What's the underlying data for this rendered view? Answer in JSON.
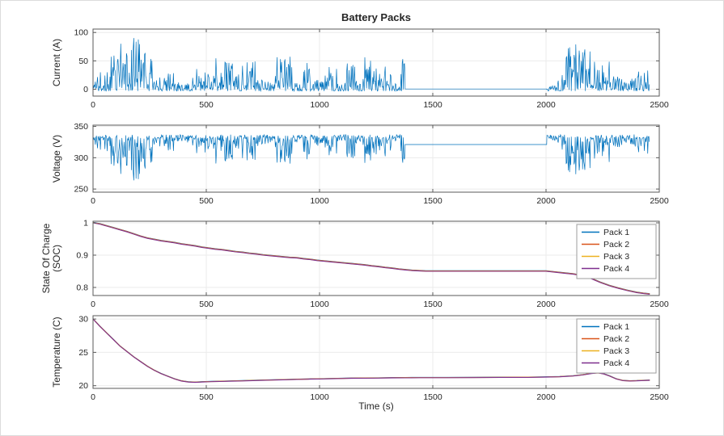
{
  "figure": {
    "title": "Battery Packs",
    "xlabel": "Time (s)",
    "background": "#ffffff",
    "border_color": "#dcdcdc",
    "axes_color": "#5a5a5a",
    "grid_color": "#ebebeb",
    "text_color": "#262626"
  },
  "packs": [
    {
      "label": "Pack 1",
      "color": "#0072BD"
    },
    {
      "label": "Pack 2",
      "color": "#D95319"
    },
    {
      "label": "Pack 3",
      "color": "#EDB120"
    },
    {
      "label": "Pack 4",
      "color": "#7E2F8E"
    }
  ],
  "chart_data": [
    {
      "name": "current",
      "type": "line",
      "title": "Battery Packs",
      "ylabel": "Current (A)",
      "xlim": [
        0,
        2500
      ],
      "ylim": [
        -12,
        106
      ],
      "xticks": [
        0,
        500,
        1000,
        1500,
        2000,
        2500
      ],
      "xtick_labels": [
        "0",
        "500",
        "1000",
        "1500",
        "2000",
        "2500"
      ],
      "yticks": [
        0,
        50,
        100
      ],
      "ytick_labels": [
        "0",
        "50",
        "100"
      ],
      "line_color": "#0072BD",
      "legend": false,
      "signal": {
        "kind": "drive_cycle",
        "seed": 11,
        "sample_step": 2.5,
        "segments": [
          {
            "t": [
              0,
              1378
            ],
            "mode": "drive",
            "base": 5,
            "amp": 62
          },
          {
            "t": [
              1378,
              2004
            ],
            "mode": "flat",
            "value": 0.5
          },
          {
            "t": [
              2004,
              2458
            ],
            "mode": "drive",
            "base": 6,
            "amp": 62
          }
        ],
        "peaks": [
          {
            "t": 175,
            "width": 55,
            "gain": 1.65
          },
          {
            "t": 640,
            "width": 45,
            "gain": 1.18
          },
          {
            "t": 2135,
            "width": 55,
            "gain": 1.62
          },
          {
            "t": 2300,
            "width": 70,
            "gain": 1.25
          }
        ]
      }
    },
    {
      "name": "voltage",
      "type": "line",
      "ylabel": "Voltage (V)",
      "xlim": [
        0,
        2500
      ],
      "ylim": [
        245,
        352
      ],
      "xticks": [
        0,
        500,
        1000,
        1500,
        2000,
        2500
      ],
      "xtick_labels": [
        "0",
        "500",
        "1000",
        "1500",
        "2000",
        "2500"
      ],
      "yticks": [
        250,
        300,
        350
      ],
      "ytick_labels": [
        "250",
        "300",
        "350"
      ],
      "line_color": "#0072BD",
      "legend": false,
      "signal": {
        "kind": "derived_voltage",
        "seed": 23,
        "base": 335.5,
        "gain": 0.78,
        "noise": 5,
        "flat_value": 321
      }
    },
    {
      "name": "soc",
      "type": "line",
      "ylabel": "State Of Charge (SOC)",
      "ylabel_lines": [
        "State Of Charge",
        "(SOC)"
      ],
      "xlim": [
        0,
        2500
      ],
      "ylim": [
        0.775,
        1.005
      ],
      "xticks": [
        0,
        500,
        1000,
        1500,
        2000,
        2500
      ],
      "xtick_labels": [
        "0",
        "500",
        "1000",
        "1500",
        "2000",
        "2500"
      ],
      "yticks": [
        0.8,
        0.9,
        1
      ],
      "ytick_labels": [
        "0.8",
        "0.9",
        "1"
      ],
      "legend": true,
      "series_labels": [
        "Pack 1",
        "Pack 2",
        "Pack 3",
        "Pack 4"
      ],
      "series_offsets": [
        0.0018,
        0.0012,
        0.0006,
        0
      ],
      "points": [
        [
          0,
          1.0
        ],
        [
          30,
          0.996
        ],
        [
          60,
          0.99
        ],
        [
          90,
          0.984
        ],
        [
          120,
          0.978
        ],
        [
          150,
          0.972
        ],
        [
          180,
          0.965
        ],
        [
          210,
          0.958
        ],
        [
          240,
          0.952
        ],
        [
          270,
          0.948
        ],
        [
          300,
          0.944
        ],
        [
          330,
          0.941
        ],
        [
          360,
          0.938
        ],
        [
          390,
          0.934
        ],
        [
          420,
          0.931
        ],
        [
          450,
          0.928
        ],
        [
          480,
          0.924
        ],
        [
          510,
          0.921
        ],
        [
          540,
          0.918
        ],
        [
          570,
          0.916
        ],
        [
          600,
          0.913
        ],
        [
          630,
          0.91
        ],
        [
          660,
          0.908
        ],
        [
          690,
          0.905
        ],
        [
          720,
          0.903
        ],
        [
          750,
          0.9
        ],
        [
          780,
          0.898
        ],
        [
          810,
          0.896
        ],
        [
          840,
          0.894
        ],
        [
          870,
          0.892
        ],
        [
          900,
          0.891
        ],
        [
          930,
          0.888
        ],
        [
          960,
          0.886
        ],
        [
          990,
          0.883
        ],
        [
          1020,
          0.881
        ],
        [
          1050,
          0.879
        ],
        [
          1080,
          0.877
        ],
        [
          1110,
          0.875
        ],
        [
          1140,
          0.873
        ],
        [
          1170,
          0.871
        ],
        [
          1200,
          0.869
        ],
        [
          1230,
          0.866
        ],
        [
          1260,
          0.864
        ],
        [
          1290,
          0.861
        ],
        [
          1320,
          0.859
        ],
        [
          1350,
          0.856
        ],
        [
          1380,
          0.854
        ],
        [
          1410,
          0.852
        ],
        [
          1440,
          0.851
        ],
        [
          1470,
          0.85
        ],
        [
          1600,
          0.85
        ],
        [
          1800,
          0.85
        ],
        [
          2000,
          0.85
        ],
        [
          2040,
          0.847
        ],
        [
          2080,
          0.844
        ],
        [
          2120,
          0.841
        ],
        [
          2160,
          0.836
        ],
        [
          2200,
          0.827
        ],
        [
          2240,
          0.815
        ],
        [
          2280,
          0.805
        ],
        [
          2320,
          0.797
        ],
        [
          2360,
          0.79
        ],
        [
          2400,
          0.784
        ],
        [
          2430,
          0.781
        ],
        [
          2458,
          0.779
        ]
      ]
    },
    {
      "name": "temperature",
      "type": "line",
      "ylabel": "Temperature (C)",
      "xlabel": "Time (s)",
      "xlim": [
        0,
        2500
      ],
      "ylim": [
        19.6,
        30.5
      ],
      "xticks": [
        0,
        500,
        1000,
        1500,
        2000,
        2500
      ],
      "xtick_labels": [
        "0",
        "500",
        "1000",
        "1500",
        "2000",
        "2500"
      ],
      "yticks": [
        20,
        25,
        30
      ],
      "ytick_labels": [
        "20",
        "25",
        "30"
      ],
      "legend": true,
      "series_labels": [
        "Pack 1",
        "Pack 2",
        "Pack 3",
        "Pack 4"
      ],
      "series_offsets": [
        0.05,
        0.033,
        0.017,
        0
      ],
      "points": [
        [
          0,
          30.0
        ],
        [
          30,
          28.9
        ],
        [
          60,
          27.9
        ],
        [
          90,
          26.9
        ],
        [
          120,
          25.9
        ],
        [
          150,
          25.1
        ],
        [
          180,
          24.3
        ],
        [
          210,
          23.6
        ],
        [
          240,
          22.9
        ],
        [
          270,
          22.3
        ],
        [
          300,
          21.8
        ],
        [
          330,
          21.4
        ],
        [
          360,
          21.0
        ],
        [
          390,
          20.7
        ],
        [
          420,
          20.55
        ],
        [
          450,
          20.5
        ],
        [
          480,
          20.55
        ],
        [
          520,
          20.6
        ],
        [
          560,
          20.63
        ],
        [
          600,
          20.67
        ],
        [
          660,
          20.72
        ],
        [
          720,
          20.78
        ],
        [
          780,
          20.83
        ],
        [
          840,
          20.88
        ],
        [
          900,
          20.93
        ],
        [
          960,
          20.98
        ],
        [
          1020,
          21.02
        ],
        [
          1080,
          21.06
        ],
        [
          1140,
          21.1
        ],
        [
          1200,
          21.12
        ],
        [
          1260,
          21.14
        ],
        [
          1320,
          21.16
        ],
        [
          1380,
          21.18
        ],
        [
          1440,
          21.2
        ],
        [
          1560,
          21.2
        ],
        [
          1680,
          21.21
        ],
        [
          1800,
          21.23
        ],
        [
          1920,
          21.25
        ],
        [
          2000,
          21.28
        ],
        [
          2060,
          21.33
        ],
        [
          2120,
          21.45
        ],
        [
          2160,
          21.6
        ],
        [
          2200,
          21.82
        ],
        [
          2230,
          21.9
        ],
        [
          2255,
          21.75
        ],
        [
          2280,
          21.45
        ],
        [
          2310,
          21.0
        ],
        [
          2340,
          20.75
        ],
        [
          2370,
          20.7
        ],
        [
          2400,
          20.73
        ],
        [
          2430,
          20.77
        ],
        [
          2458,
          20.8
        ]
      ]
    }
  ]
}
